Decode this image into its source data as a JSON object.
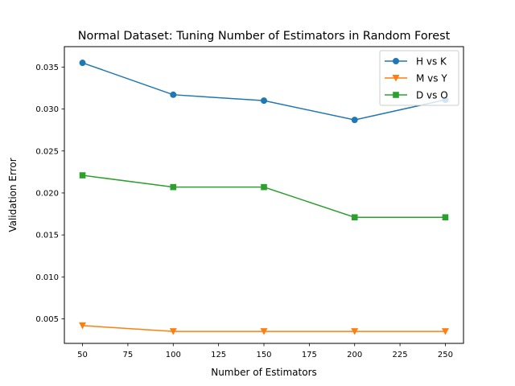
{
  "chart_data": {
    "type": "line",
    "title": "Normal Dataset: Tuning Number of Estimators in Random Forest",
    "xlabel": "Number of Estimators",
    "ylabel": "Validation Error",
    "x": [
      50,
      100,
      150,
      200,
      250
    ],
    "xlim": [
      40,
      260
    ],
    "ylim": [
      0.00208,
      0.03743
    ],
    "xticks": [
      "50",
      "75",
      "100",
      "125",
      "150",
      "175",
      "200",
      "225",
      "250"
    ],
    "yticks": [
      "0.005",
      "0.010",
      "0.015",
      "0.020",
      "0.025",
      "0.030",
      "0.035"
    ],
    "grid": false,
    "legend_position": "top-right",
    "series": [
      {
        "name": "H vs K",
        "color": "#1f77b4",
        "marker": "circle",
        "values": [
          0.0355,
          0.0317,
          0.031,
          0.0287,
          0.0311
        ]
      },
      {
        "name": "M vs Y",
        "color": "#ff7f0e",
        "marker": "triangle-down",
        "values": [
          0.0042,
          0.0035,
          0.0035,
          0.0035,
          0.0035
        ]
      },
      {
        "name": "D vs O",
        "color": "#2ca02c",
        "marker": "square",
        "values": [
          0.0221,
          0.0207,
          0.0207,
          0.0171,
          0.0171
        ]
      }
    ]
  }
}
